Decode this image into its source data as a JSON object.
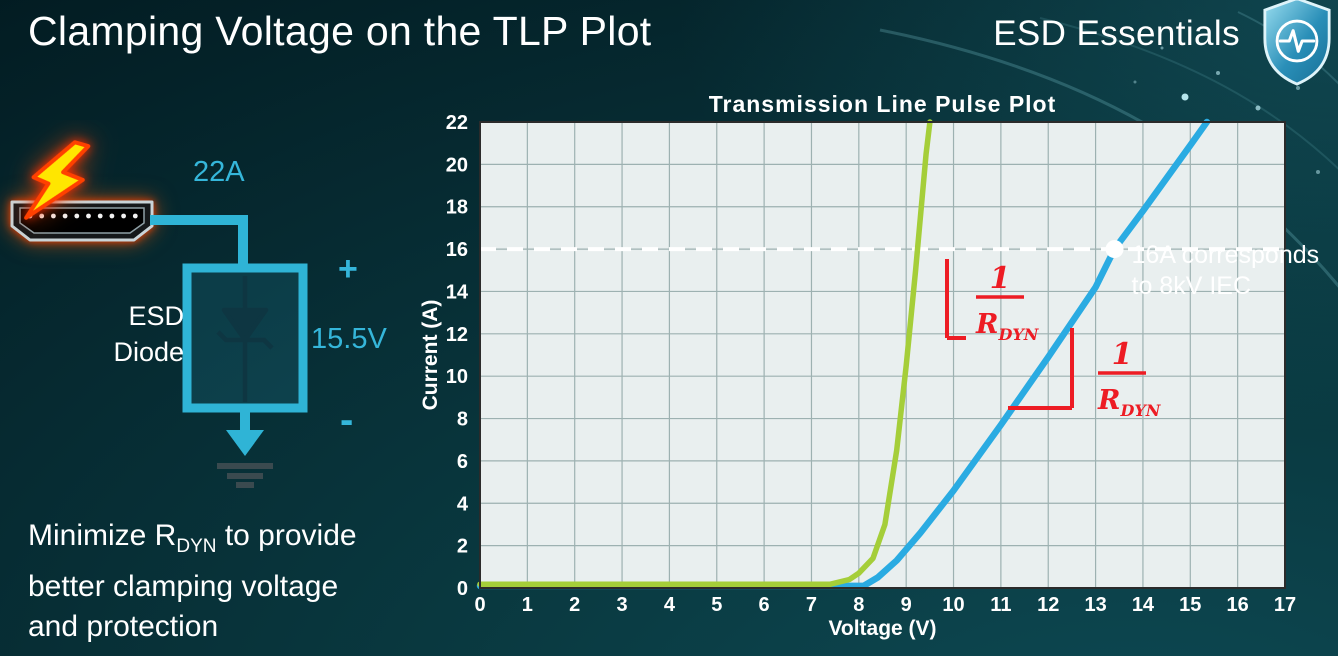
{
  "slide": {
    "title": "Clamping Voltage on the TLP Plot",
    "brand": "ESD Essentials"
  },
  "icons": {
    "brand": "shield-pulse-icon",
    "strike": "lightning-bolt-icon",
    "connector": "hdmi-connector-icon",
    "device_symbol": "zener-diode-symbol",
    "ground": "earth-ground-symbol"
  },
  "diagram": {
    "current_label": "22A",
    "device_label_line1": "ESD",
    "device_label_line2": "Diode",
    "plus_label": "+",
    "voltage_label": "15.5V",
    "minus_label": "-"
  },
  "note": {
    "line1_pre": "Minimize R",
    "line1_sub": "DYN",
    "line1_post": " to provide",
    "line2": "better clamping voltage",
    "line3": "and protection"
  },
  "chart_data": {
    "type": "line",
    "title": "Transmission Line Pulse Plot",
    "xlabel": "Voltage (V)",
    "ylabel": "Current (A)",
    "xlim": [
      0,
      17
    ],
    "ylim": [
      0,
      22
    ],
    "xtick_step": 1,
    "ytick_step": 2,
    "grid": true,
    "legend": "none",
    "plot_bg": "#e9efef",
    "grid_color": "#9db1b1",
    "series": [
      {
        "name": "green-steep-slope-device",
        "color": "#a5ce39",
        "width": 5.5,
        "points": [
          [
            0,
            0.18
          ],
          [
            7.4,
            0.18
          ],
          [
            7.8,
            0.4
          ],
          [
            8.0,
            0.7
          ],
          [
            8.3,
            1.4
          ],
          [
            8.55,
            3.0
          ],
          [
            8.8,
            6.5
          ],
          [
            9.0,
            10.5
          ],
          [
            9.2,
            15.0
          ],
          [
            9.42,
            20.5
          ],
          [
            9.5,
            22
          ]
        ]
      },
      {
        "name": "blue-shallow-slope-device",
        "color": "#2aabe2",
        "width": 6.5,
        "points": [
          [
            0,
            0.1
          ],
          [
            8.1,
            0.1
          ],
          [
            8.4,
            0.5
          ],
          [
            8.8,
            1.3
          ],
          [
            9.3,
            2.6
          ],
          [
            10,
            4.6
          ],
          [
            11,
            7.7
          ],
          [
            12,
            10.9
          ],
          [
            13,
            14.2
          ],
          [
            13.4,
            16
          ],
          [
            14,
            17.8
          ],
          [
            15,
            20.9
          ],
          [
            15.35,
            22
          ]
        ]
      }
    ],
    "reference_line": {
      "y": 16,
      "color": "#ffffff",
      "style": "dashed"
    },
    "marker": {
      "x": 13.4,
      "y": 16,
      "color": "#ffffff",
      "label_lines": [
        "16A corresponds",
        "to 8kV IEC"
      ]
    },
    "slope_annotations": [
      {
        "series": "green-steep-slope-device",
        "numerator": "1",
        "denominator": "R",
        "den_subscript": "DYN",
        "color": "#ed1c24"
      },
      {
        "series": "blue-shallow-slope-device",
        "numerator": "1",
        "denominator": "R",
        "den_subscript": "DYN",
        "color": "#ed1c24"
      }
    ]
  }
}
